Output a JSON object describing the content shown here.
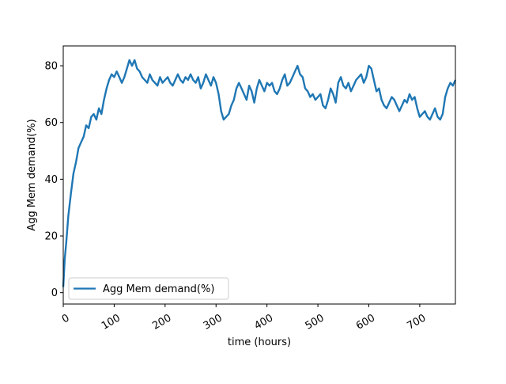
{
  "chart_data": {
    "type": "line",
    "title": "",
    "xlabel": "time (hours)",
    "ylabel": "Agg Mem demand(%)",
    "xlim": [
      0,
      770
    ],
    "ylim": [
      -4,
      87
    ],
    "xticks": [
      0,
      100,
      200,
      300,
      400,
      500,
      600,
      700
    ],
    "yticks": [
      0,
      20,
      40,
      60,
      80
    ],
    "grid": false,
    "legend": {
      "position": "lower-left",
      "entries": [
        "Agg Mem demand(%)"
      ]
    },
    "series": [
      {
        "name": "Agg Mem demand(%)",
        "color": "#1f77b4",
        "x": [
          0,
          3,
          6,
          10,
          15,
          20,
          25,
          30,
          35,
          40,
          45,
          50,
          55,
          60,
          65,
          70,
          75,
          80,
          85,
          90,
          95,
          100,
          105,
          110,
          115,
          120,
          125,
          130,
          135,
          140,
          145,
          150,
          155,
          160,
          165,
          170,
          175,
          180,
          185,
          190,
          195,
          200,
          205,
          210,
          215,
          220,
          225,
          230,
          235,
          240,
          245,
          250,
          255,
          260,
          265,
          270,
          275,
          280,
          285,
          290,
          295,
          300,
          305,
          310,
          315,
          320,
          325,
          330,
          335,
          340,
          345,
          350,
          355,
          360,
          365,
          370,
          375,
          380,
          385,
          390,
          395,
          400,
          405,
          410,
          415,
          420,
          425,
          430,
          435,
          440,
          445,
          450,
          455,
          460,
          465,
          470,
          475,
          480,
          485,
          490,
          495,
          500,
          505,
          510,
          515,
          520,
          525,
          530,
          535,
          540,
          545,
          550,
          555,
          560,
          565,
          570,
          575,
          580,
          585,
          590,
          595,
          600,
          605,
          610,
          615,
          620,
          625,
          630,
          635,
          640,
          645,
          650,
          655,
          660,
          665,
          670,
          675,
          680,
          685,
          690,
          695,
          700,
          705,
          710,
          715,
          720,
          725,
          730,
          735,
          740,
          745,
          750,
          755,
          760,
          765,
          770
        ],
        "y": [
          2,
          12,
          18,
          27,
          35,
          42,
          46,
          51,
          53,
          55,
          59,
          58,
          62,
          63,
          61,
          65,
          63,
          68,
          72,
          75,
          77,
          76,
          78,
          76,
          74,
          76,
          79,
          82,
          80,
          82,
          79,
          78,
          76,
          75,
          74,
          77,
          75,
          74,
          73,
          76,
          74,
          75,
          76,
          74,
          73,
          75,
          77,
          75,
          74,
          76,
          75,
          77,
          75,
          74,
          76,
          72,
          74,
          77,
          75,
          73,
          76,
          74,
          70,
          64,
          61,
          62,
          63,
          66,
          68,
          72,
          74,
          72,
          70,
          68,
          73,
          71,
          67,
          72,
          75,
          73,
          71,
          74,
          73,
          74,
          71,
          70,
          72,
          75,
          77,
          73,
          74,
          76,
          78,
          80,
          77,
          76,
          72,
          71,
          69,
          70,
          68,
          69,
          70,
          66,
          65,
          68,
          72,
          70,
          67,
          74,
          76,
          73,
          72,
          74,
          71,
          73,
          75,
          76,
          77,
          74,
          76,
          80,
          79,
          75,
          71,
          72,
          68,
          66,
          65,
          67,
          69,
          68,
          66,
          64,
          66,
          68,
          67,
          70,
          68,
          69,
          65,
          62,
          63,
          64,
          62,
          61,
          63,
          65,
          62,
          61,
          63,
          69,
          72,
          74,
          73,
          75
        ]
      }
    ]
  }
}
